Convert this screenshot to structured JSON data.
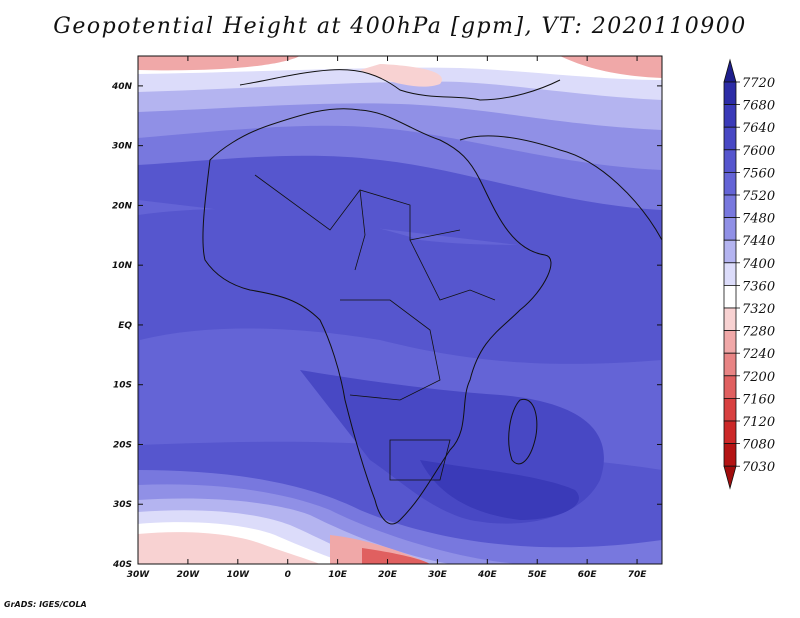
{
  "title": "Geopotential Height at 400hPa [gpm], VT: 2020110900",
  "credit": "GrADS: IGES/COLA",
  "map": {
    "lon_range": [
      -30,
      75
    ],
    "lat_range": [
      -40,
      45
    ],
    "lon_ticks": [
      {
        "value": -30,
        "label": "30W"
      },
      {
        "value": -20,
        "label": "20W"
      },
      {
        "value": -10,
        "label": "10W"
      },
      {
        "value": 0,
        "label": "0"
      },
      {
        "value": 10,
        "label": "10E"
      },
      {
        "value": 20,
        "label": "20E"
      },
      {
        "value": 30,
        "label": "30E"
      },
      {
        "value": 40,
        "label": "40E"
      },
      {
        "value": 50,
        "label": "50E"
      },
      {
        "value": 60,
        "label": "60E"
      },
      {
        "value": 70,
        "label": "70E"
      }
    ],
    "lat_ticks": [
      {
        "value": 40,
        "label": "40N"
      },
      {
        "value": 30,
        "label": "30N"
      },
      {
        "value": 20,
        "label": "20N"
      },
      {
        "value": 10,
        "label": "10N"
      },
      {
        "value": 0,
        "label": "EQ"
      },
      {
        "value": -10,
        "label": "10S"
      },
      {
        "value": -20,
        "label": "20S"
      },
      {
        "value": -30,
        "label": "30S"
      },
      {
        "value": -40,
        "label": "40S"
      }
    ]
  },
  "colorbar": {
    "levels": [
      "7720",
      "7680",
      "7640",
      "7600",
      "7560",
      "7520",
      "7480",
      "7440",
      "7400",
      "7360",
      "7320",
      "7280",
      "7240",
      "7200",
      "7160",
      "7120",
      "7080",
      "7030"
    ],
    "colors": [
      "#1e1e8c",
      "#2c2ca6",
      "#3a3ab8",
      "#4848c4",
      "#5656ce",
      "#6464d6",
      "#7878de",
      "#9090e6",
      "#b4b4f0",
      "#dcdcfa",
      "#ffffff",
      "#f8d2d2",
      "#f0a8a8",
      "#e88484",
      "#e06060",
      "#d84040",
      "#cc2828",
      "#b41414",
      "#a00c0c"
    ]
  }
}
